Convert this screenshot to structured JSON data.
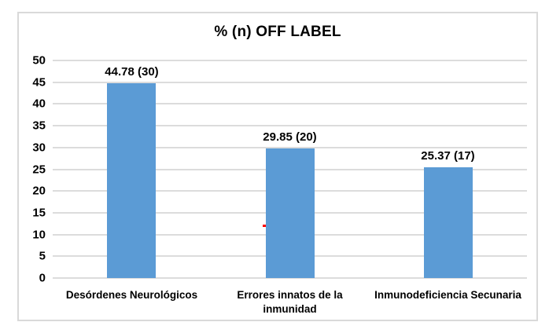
{
  "chart_data": {
    "type": "bar",
    "title": "% (n) OFF LABEL",
    "categories": [
      "Desórdenes Neurológicos",
      "Errores innatos de la inmunidad",
      "Inmunodeficiencia Secunaria"
    ],
    "values": [
      44.78,
      29.85,
      25.37
    ],
    "counts": [
      30,
      20,
      17
    ],
    "bar_labels": [
      "44.78 (30)",
      "29.85 (20)",
      "25.37 (17)"
    ],
    "xlabel": "",
    "ylabel": "",
    "ylim": [
      0,
      50
    ],
    "y_ticks": [
      0,
      5,
      10,
      15,
      20,
      25,
      30,
      35,
      40,
      45,
      50
    ],
    "grid": "horizontal",
    "legend": "none",
    "bar_color": "#5B9BD5",
    "gridline_color": "#DCDCDC",
    "frame_color": "#D9D9D9",
    "text_color": "#000000",
    "stray_mark": {
      "color": "#FF0000",
      "x_percent": 44.3,
      "y_percent": 23.3
    }
  }
}
